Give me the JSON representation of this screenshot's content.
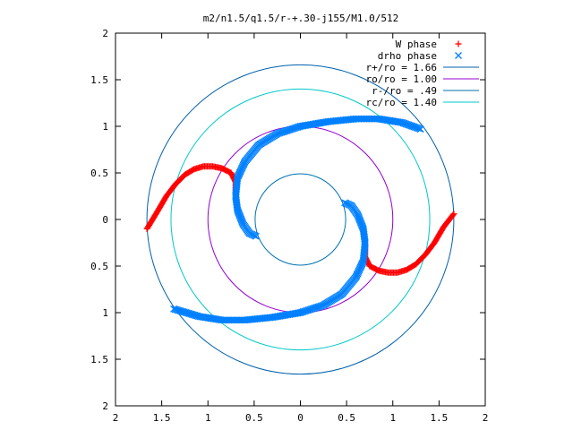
{
  "chart_data": {
    "type": "scatter",
    "title": "m2/n1.5/q1.5/r-+.30-j155/M1.0/512",
    "xlabel": "",
    "ylabel": "",
    "xlim": [
      -2,
      2
    ],
    "ylim": [
      -2,
      2
    ],
    "grid": false,
    "legend_position": "top-right",
    "x_ticks": [
      -2,
      -1.5,
      -1,
      -0.5,
      0,
      0.5,
      1,
      1.5,
      2
    ],
    "y_ticks": [
      -2,
      -1.5,
      -1,
      -0.5,
      0,
      0.5,
      1,
      1.5,
      2
    ],
    "x_tick_labels": [
      "2",
      "1.5",
      "1",
      "0.5",
      "0",
      "0.5",
      "1",
      "1.5",
      "2"
    ],
    "y_tick_labels": [
      "2",
      "1.5",
      "1",
      "0.5",
      "0",
      "0.5",
      "1",
      "1.5",
      "2"
    ],
    "series": [
      {
        "name": "W phase",
        "kind": "points",
        "marker": "plus",
        "color": "#ff0000",
        "segments": [
          [
            [
              -1.66,
              -0.1
            ],
            [
              -1.55,
              0.08
            ],
            [
              -1.45,
              0.25
            ],
            [
              -1.35,
              0.38
            ],
            [
              -1.25,
              0.48
            ],
            [
              -1.15,
              0.54
            ],
            [
              -1.05,
              0.57
            ],
            [
              -0.95,
              0.57
            ],
            [
              -0.85,
              0.55
            ],
            [
              -0.75,
              0.5
            ],
            [
              -0.7,
              0.4
            ],
            [
              -0.7,
              0.25
            ]
          ],
          [
            [
              0.7,
              -0.25
            ],
            [
              0.7,
              -0.4
            ],
            [
              0.75,
              -0.5
            ],
            [
              0.85,
              -0.55
            ],
            [
              0.95,
              -0.57
            ],
            [
              1.05,
              -0.57
            ],
            [
              1.15,
              -0.54
            ],
            [
              1.25,
              -0.48
            ],
            [
              1.35,
              -0.38
            ],
            [
              1.45,
              -0.25
            ],
            [
              1.55,
              -0.08
            ],
            [
              1.66,
              0.06
            ]
          ]
        ]
      },
      {
        "name": "drho phase",
        "kind": "points",
        "marker": "cross",
        "color": "#0080ff",
        "segments": [
          [
            [
              -0.7,
              0.25
            ],
            [
              -0.68,
              0.1
            ],
            [
              -0.62,
              -0.05
            ],
            [
              -0.55,
              -0.15
            ],
            [
              -0.48,
              -0.18
            ]
          ],
          [
            [
              -0.7,
              0.25
            ],
            [
              -0.68,
              0.45
            ],
            [
              -0.6,
              0.62
            ],
            [
              -0.45,
              0.8
            ],
            [
              -0.25,
              0.92
            ],
            [
              0.0,
              1.0
            ],
            [
              0.3,
              1.05
            ],
            [
              0.6,
              1.08
            ],
            [
              0.85,
              1.08
            ],
            [
              1.1,
              1.04
            ],
            [
              1.3,
              0.97
            ]
          ],
          [
            [
              0.48,
              0.18
            ],
            [
              0.55,
              0.15
            ],
            [
              0.62,
              0.05
            ],
            [
              0.68,
              -0.1
            ],
            [
              0.7,
              -0.25
            ]
          ],
          [
            [
              0.7,
              -0.25
            ],
            [
              0.68,
              -0.45
            ],
            [
              0.6,
              -0.62
            ],
            [
              0.45,
              -0.8
            ],
            [
              0.25,
              -0.92
            ],
            [
              0.0,
              -1.0
            ],
            [
              -0.3,
              -1.05
            ],
            [
              -0.6,
              -1.08
            ],
            [
              -0.85,
              -1.08
            ],
            [
              -1.1,
              -1.04
            ],
            [
              -1.37,
              -0.96
            ]
          ]
        ]
      },
      {
        "name": "r+/ro = 1.66",
        "kind": "circle",
        "radius": 1.66,
        "color": "#0060ad"
      },
      {
        "name": "ro/ro = 1.00",
        "kind": "circle",
        "radius": 1.0,
        "color": "#9400d3"
      },
      {
        "name": "r-/ro = .49",
        "kind": "circle",
        "radius": 0.49,
        "color": "#0072b2"
      },
      {
        "name": "rc/ro = 1.40",
        "kind": "circle",
        "radius": 1.4,
        "color": "#00c8c8"
      }
    ]
  }
}
